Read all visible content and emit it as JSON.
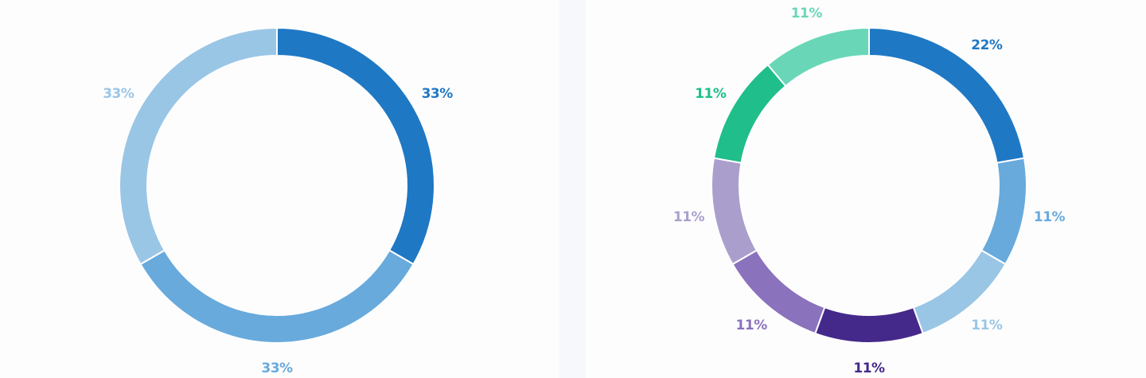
{
  "colors": {
    "page_background": "#f7f8fc",
    "panel_background": "#fdfdfe",
    "segment_separator": "#ffffff"
  },
  "chart_data": [
    {
      "type": "pie",
      "variant": "donut",
      "title": "",
      "series": [
        {
          "values": [
            33,
            33,
            33
          ],
          "labels": [
            "33%",
            "33%",
            "33%"
          ],
          "colors": [
            "#1f78c4",
            "#68aadc",
            "#9ac6e6"
          ]
        }
      ]
    },
    {
      "type": "pie",
      "variant": "donut",
      "title": "",
      "series": [
        {
          "values": [
            22,
            11,
            11,
            11,
            11,
            11,
            11,
            11
          ],
          "labels": [
            "22%",
            "11%",
            "11%",
            "11%",
            "11%",
            "11%",
            "11%",
            "11%"
          ],
          "colors": [
            "#1f78c4",
            "#68aadc",
            "#9ac6e6",
            "#45298a",
            "#8a72bd",
            "#aa9fcc",
            "#1fbe8a",
            "#69d7b7"
          ]
        }
      ]
    }
  ]
}
